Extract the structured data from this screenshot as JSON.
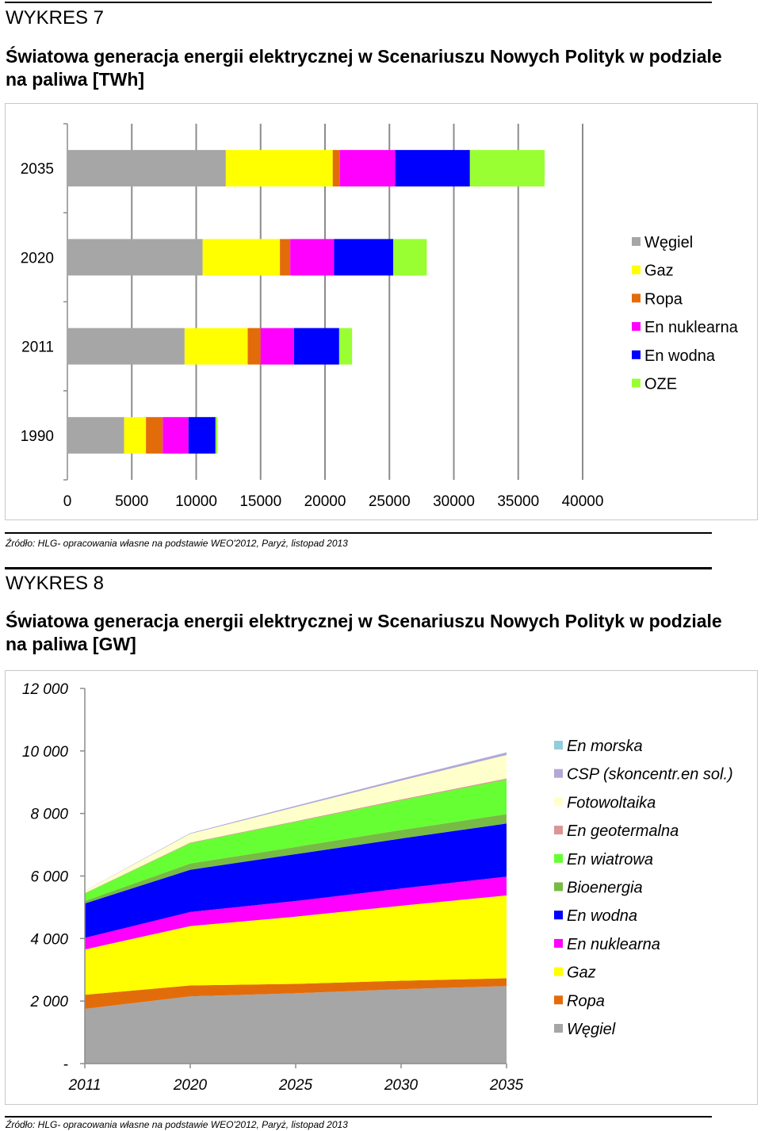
{
  "figures": [
    {
      "number": "WYKRES 7",
      "title": "Światowa generacja energii elektrycznej w Scenariuszu Nowych Polityk w podziale na paliwa  [TWh]",
      "source": "Źródło: HLG- opracowania własne na podstawie WEO'2012, Paryż, listopad 2013"
    },
    {
      "number": "WYKRES 8",
      "title": "Światowa generacja energii elektrycznej w Scenariuszu Nowych Polityk w podziale na paliwa [GW]",
      "source": "Źródło: HLG- opracowania własne na podstawie WEO'2012, Paryż, listopad 2013"
    }
  ],
  "chart_data": [
    {
      "type": "bar",
      "orientation": "horizontal",
      "stacked": true,
      "title": "Światowa generacja energii elektrycznej w Scenariuszu Nowych Polityk w podziale na paliwa  [TWh]",
      "categories": [
        "2035",
        "2020",
        "2011",
        "1990"
      ],
      "xlim": [
        0,
        40000
      ],
      "xticks": [
        0,
        5000,
        10000,
        15000,
        20000,
        25000,
        30000,
        35000,
        40000
      ],
      "x_tick_labels": [
        "0",
        "5000",
        "10000",
        "15000",
        "20000",
        "25000",
        "30000",
        "35000",
        "40000"
      ],
      "grid": "vertical",
      "legend_position": "right",
      "series": [
        {
          "name": "Węgiel",
          "color": "#a6a6a6",
          "values": [
            12300,
            10500,
            9100,
            4400
          ]
        },
        {
          "name": "Gaz",
          "color": "#ffff00",
          "values": [
            8300,
            6000,
            4900,
            1700
          ]
        },
        {
          "name": "Ropa",
          "color": "#e36c0a",
          "values": [
            550,
            800,
            1000,
            1300
          ]
        },
        {
          "name": "En nuklearna",
          "color": "#ff00ff",
          "values": [
            4300,
            3400,
            2600,
            2000
          ]
        },
        {
          "name": "En wodna",
          "color": "#0000ff",
          "values": [
            5800,
            4600,
            3500,
            2100
          ]
        },
        {
          "name": "OZE",
          "color": "#99ff33",
          "values": [
            5800,
            2600,
            1000,
            150
          ]
        }
      ]
    },
    {
      "type": "area",
      "stacked": true,
      "title": "Światowa generacja energii elektrycznej w Scenariuszu Nowych Polityk w podziale na paliwa [GW]",
      "x": [
        "2011",
        "2020",
        "2025",
        "2030",
        "2035"
      ],
      "ylim": [
        0,
        12000
      ],
      "yticks": [
        0,
        2000,
        4000,
        6000,
        8000,
        10000,
        12000
      ],
      "y_tick_labels": [
        "-",
        "2 000",
        "4 000",
        "6 000",
        "8 000",
        "10 000",
        "12 000"
      ],
      "grid": "none",
      "legend_position": "right",
      "series": [
        {
          "name": "Węgiel",
          "color": "#a6a6a6",
          "values": [
            1750,
            2150,
            2250,
            2380,
            2480
          ]
        },
        {
          "name": "Ropa",
          "color": "#e36c0a",
          "values": [
            450,
            350,
            300,
            270,
            250
          ]
        },
        {
          "name": "Gaz",
          "color": "#ffff00",
          "values": [
            1450,
            1900,
            2150,
            2400,
            2650
          ]
        },
        {
          "name": "En nuklearna",
          "color": "#ff00ff",
          "values": [
            370,
            450,
            500,
            550,
            600
          ]
        },
        {
          "name": "En wodna",
          "color": "#0000ff",
          "values": [
            1100,
            1350,
            1500,
            1600,
            1700
          ]
        },
        {
          "name": "Bioenergia",
          "color": "#77bb44",
          "values": [
            80,
            200,
            230,
            270,
            300
          ]
        },
        {
          "name": "En wiatrowa",
          "color": "#66ff33",
          "values": [
            240,
            650,
            800,
            950,
            1100
          ]
        },
        {
          "name": "En geotermalna",
          "color": "#d99694",
          "values": [
            12,
            20,
            25,
            30,
            40
          ]
        },
        {
          "name": "Fotowoltaika",
          "color": "#ffffcc",
          "values": [
            70,
            280,
            450,
            600,
            750
          ]
        },
        {
          "name": "CSP (skoncentr.en sol.)",
          "color": "#b4a7d6",
          "values": [
            3,
            20,
            40,
            60,
            80
          ]
        },
        {
          "name": "En morska",
          "color": "#92cddc",
          "values": [
            1,
            2,
            3,
            5,
            8
          ]
        }
      ],
      "legend_order": [
        "En morska",
        "CSP (skoncentr.en sol.)",
        "Fotowoltaika",
        "En geotermalna",
        "En wiatrowa",
        "Bioenergia",
        "En wodna",
        "En nuklearna",
        "Gaz",
        "Ropa",
        "Węgiel"
      ]
    }
  ]
}
